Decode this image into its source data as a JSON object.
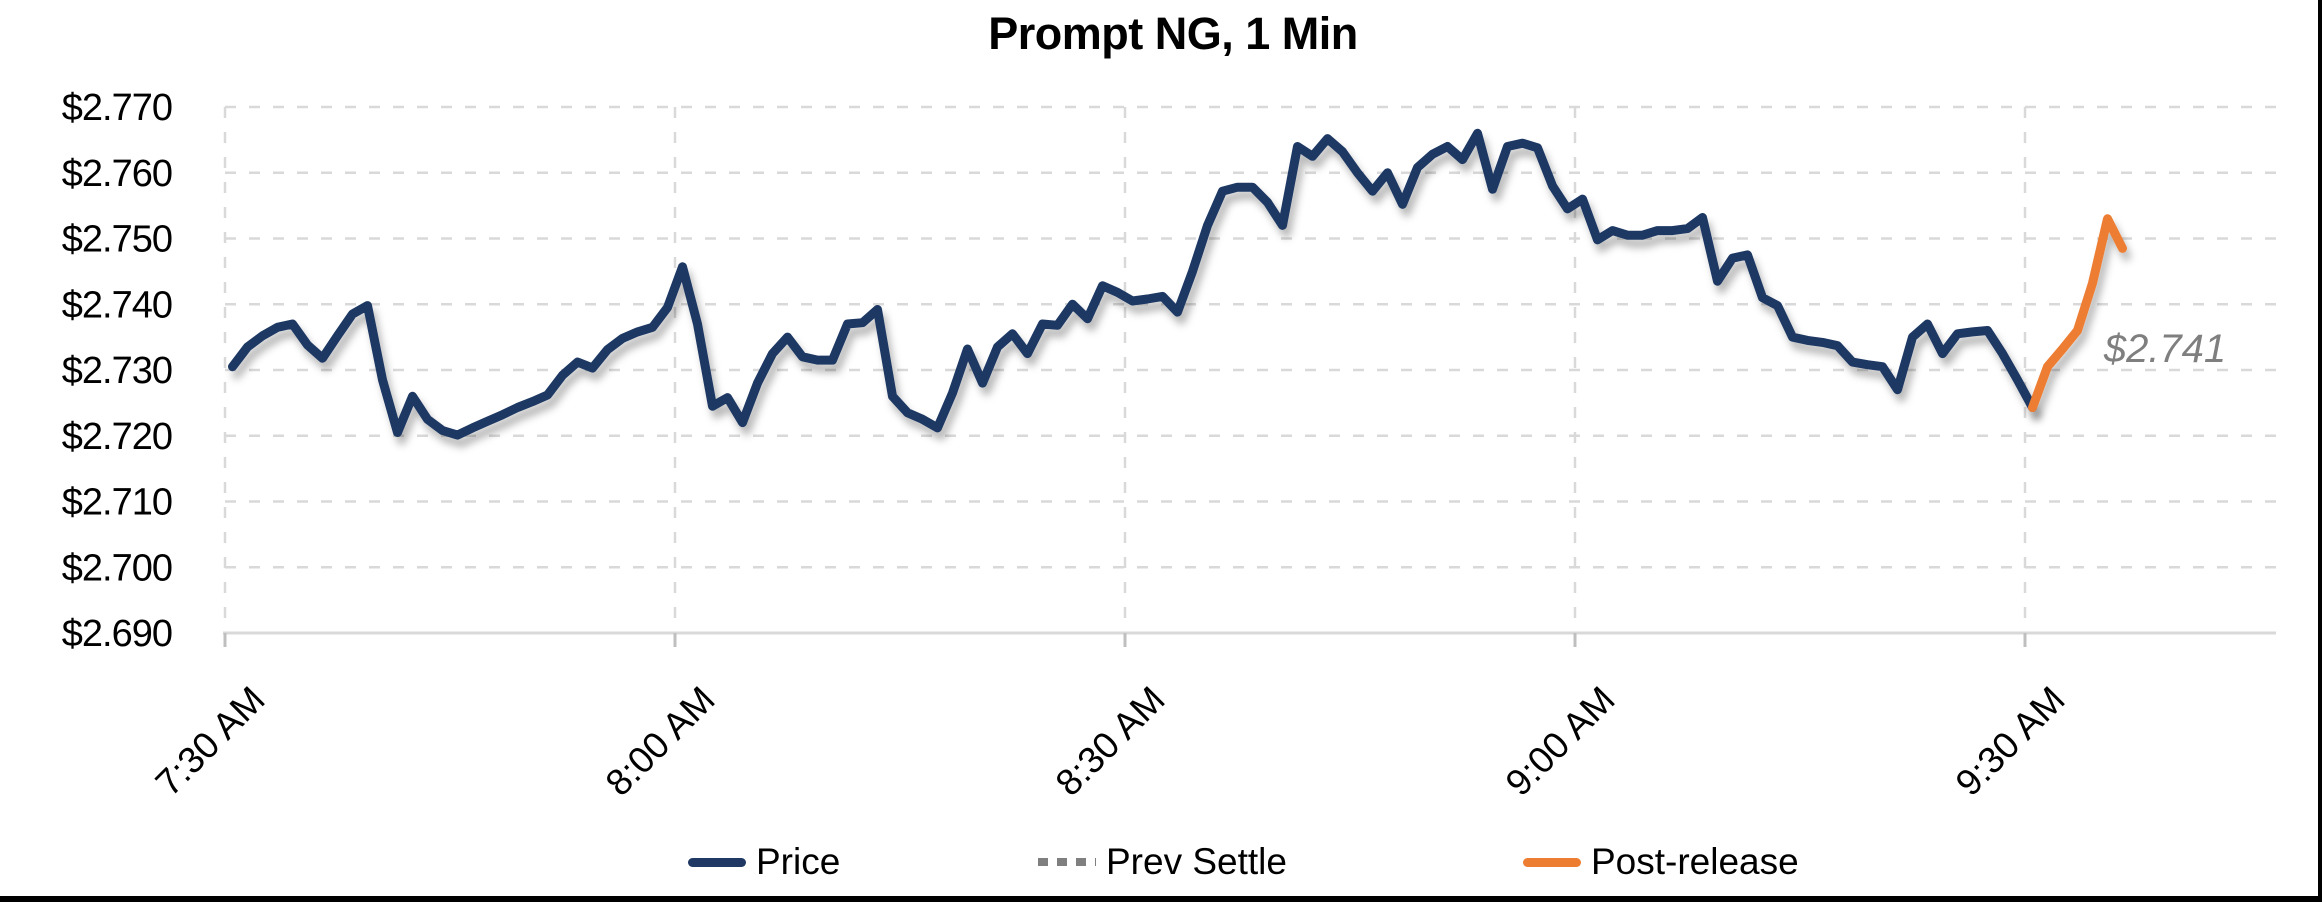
{
  "title": "Prompt NG, 1 Min",
  "annotation": {
    "text": "$2.741"
  },
  "colors": {
    "price_line": "#1F3864",
    "post_release_line": "#ED7D31",
    "prev_settle_line": "#7F7F7F",
    "gridline": "#D9D9D9",
    "axis_line": "#D9D9D9",
    "tick_mark": "#BFBFBF",
    "axis_text": "#000000",
    "annotation_text": "#7F7F7F",
    "background": "#FFFFFF"
  },
  "legend": {
    "items": [
      {
        "label": "Price",
        "color": "#1F3864",
        "style": "solid"
      },
      {
        "label": "Prev Settle",
        "color": "#7F7F7F",
        "style": "dashed"
      },
      {
        "label": "Post-release",
        "color": "#ED7D31",
        "style": "solid"
      }
    ]
  },
  "chart_data": {
    "type": "line",
    "title": "Prompt NG, 1 Min",
    "xlabel": "",
    "ylabel": "",
    "x_axis": {
      "tick_labels": [
        "7:30 AM",
        "8:00 AM",
        "8:30 AM",
        "9:00 AM",
        "9:30 AM"
      ],
      "start_time": "7:30 AM",
      "end_time": "9:36 AM",
      "interval": "1 minute",
      "tick_interval": "30 minutes"
    },
    "y_axis": {
      "tick_labels": [
        "$2.770",
        "$2.760",
        "$2.750",
        "$2.740",
        "$2.730",
        "$2.720",
        "$2.710",
        "$2.700",
        "$2.690"
      ],
      "min": 2.69,
      "max": 2.77,
      "tick_step": 0.01,
      "format": "$0.000"
    },
    "prev_settle": 2.741,
    "grid": "dashed",
    "legend_position": "bottom",
    "series": [
      {
        "name": "Price",
        "color": "#1F3864",
        "style": "solid",
        "start_minute": 0,
        "x_unit": "minutes since 7:30 AM",
        "values": [
          2.7305,
          2.7335,
          2.7352,
          2.7365,
          2.737,
          2.7338,
          2.7318,
          2.7352,
          2.7385,
          2.7398,
          2.7285,
          2.7205,
          2.726,
          2.7225,
          2.7208,
          2.7201,
          2.7212,
          2.7222,
          2.7232,
          2.7243,
          2.7252,
          2.7262,
          2.7292,
          2.7312,
          2.7303,
          2.7331,
          2.7348,
          2.7358,
          2.7365,
          2.7395,
          2.7457,
          2.737,
          2.7245,
          2.7258,
          2.722,
          2.728,
          2.7325,
          2.735,
          2.732,
          2.7315,
          2.7315,
          2.737,
          2.7372,
          2.7392,
          2.726,
          2.7235,
          2.7225,
          2.7212,
          2.7265,
          2.7332,
          2.728,
          2.7335,
          2.7355,
          2.7325,
          2.737,
          2.7368,
          2.74,
          2.7378,
          2.7428,
          2.7418,
          2.7405,
          2.7408,
          2.7412,
          2.7388,
          2.745,
          2.752,
          2.7572,
          2.7578,
          2.7578,
          2.7555,
          2.752,
          2.764,
          2.7625,
          2.7652,
          2.7632,
          2.76,
          2.7572,
          2.76,
          2.7552,
          2.7608,
          2.7628,
          2.764,
          2.762,
          2.766,
          2.7575,
          2.764,
          2.7645,
          2.7638,
          2.758,
          2.7545,
          2.756,
          2.7498,
          2.7512,
          2.7505,
          2.7505,
          2.7512,
          2.7512,
          2.7515,
          2.7532,
          2.7435,
          2.747,
          2.7475,
          2.741,
          2.7398,
          2.735,
          2.7345,
          2.7342,
          2.7337,
          2.7312,
          2.7308,
          2.7305,
          2.727,
          2.735,
          2.737,
          2.7325,
          2.7355,
          2.7358,
          2.736,
          2.7325,
          2.7285,
          2.7243
        ]
      },
      {
        "name": "Prev Settle",
        "color": "#7F7F7F",
        "style": "dashed",
        "value": 2.741
      },
      {
        "name": "Post-release",
        "color": "#ED7D31",
        "style": "solid",
        "start_minute": 120,
        "x_unit": "minutes since 7:30 AM",
        "values": [
          2.7243,
          2.7305,
          2.7332,
          2.736,
          2.7432,
          2.753,
          2.7485
        ]
      }
    ]
  }
}
